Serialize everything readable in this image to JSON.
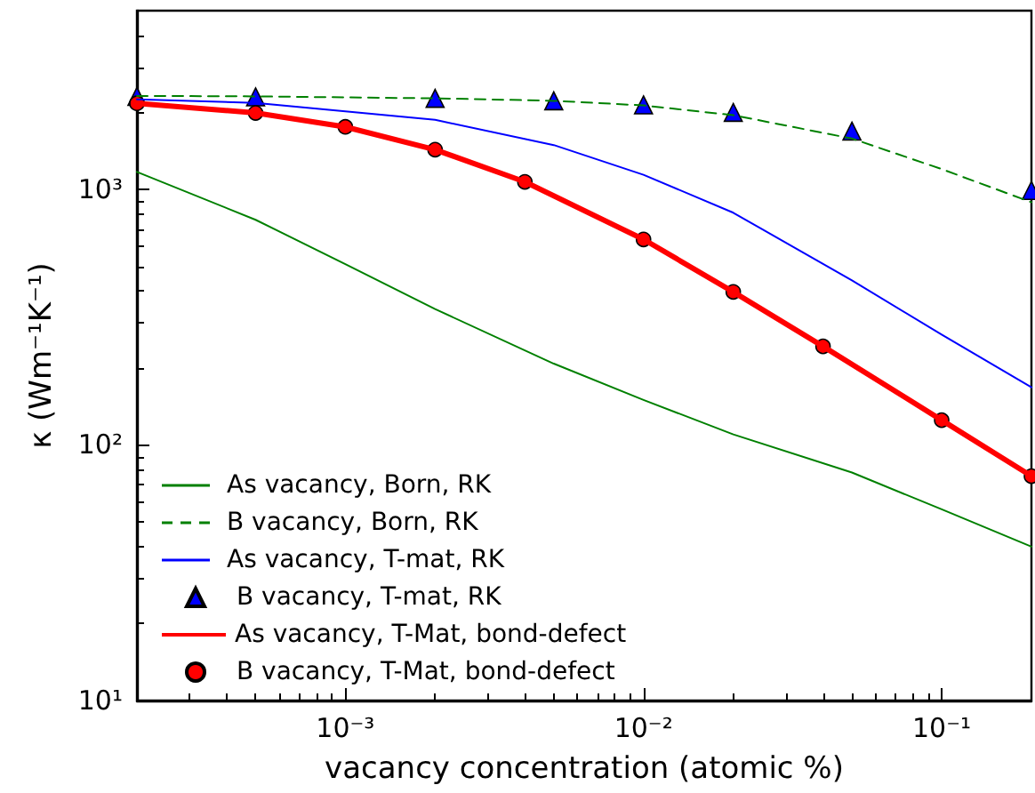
{
  "chart_data": {
    "type": "line",
    "xlabel": "vacancy concentration (atomic %)",
    "ylabel": "κ (Wm⁻¹K⁻¹)",
    "log": "xy",
    "xlim": [
      0.0002,
      0.2
    ],
    "xticks": [
      {
        "value": 0.001,
        "label": "10⁻³"
      },
      {
        "value": 0.01,
        "label": "10⁻²"
      },
      {
        "value": 0.1,
        "label": "10⁻¹"
      }
    ],
    "ylim": [
      10,
      5000
    ],
    "yticks": [
      {
        "value": 10,
        "label": "10¹"
      },
      {
        "value": 100,
        "label": "10²"
      },
      {
        "value": 1000,
        "label": "10³"
      }
    ],
    "grid": false,
    "legend": "bottom left",
    "series": [
      {
        "name": "As vacancy, Born, RK",
        "type": "line",
        "color": "#008000",
        "line_style": "solid",
        "marker": "none",
        "x": [
          0.0002,
          0.0005,
          0.001,
          0.002,
          0.005,
          0.01,
          0.02,
          0.05,
          0.1,
          0.2
        ],
        "values": [
          1170,
          760,
          510,
          340,
          208,
          150,
          110,
          78,
          56,
          40
        ]
      },
      {
        "name": "B vacancy, Born, RK",
        "type": "line",
        "color": "#008000",
        "line_style": "dashed",
        "marker": "none",
        "x": [
          0.0002,
          0.0005,
          0.001,
          0.002,
          0.005,
          0.01,
          0.02,
          0.05,
          0.1,
          0.2
        ],
        "values": [
          2320,
          2310,
          2290,
          2270,
          2220,
          2130,
          1950,
          1580,
          1200,
          890
        ]
      },
      {
        "name": "As vacancy, T-mat, RK",
        "type": "line",
        "color": "#0000ff",
        "line_style": "solid",
        "marker": "none",
        "x": [
          0.0002,
          0.0005,
          0.002,
          0.005,
          0.01,
          0.02,
          0.05,
          0.1,
          0.2
        ],
        "values": [
          2250,
          2180,
          1870,
          1490,
          1140,
          810,
          440,
          270,
          168
        ]
      },
      {
        "name": "B vacancy, T-mat, RK",
        "type": "scatter",
        "color": "#0000ff",
        "marker": "triangle",
        "x": [
          0.0002,
          0.0005,
          0.002,
          0.005,
          0.01,
          0.02,
          0.05,
          0.2
        ],
        "values": [
          2310,
          2300,
          2270,
          2220,
          2140,
          2000,
          1690,
          990
        ]
      },
      {
        "name": "As vacancy, T-Mat, bond-defect",
        "type": "line",
        "color": "#ff0000",
        "line_style": "solid",
        "marker": "none",
        "x": [
          0.0002,
          0.0005,
          0.001,
          0.002,
          0.004,
          0.01,
          0.02,
          0.04,
          0.1,
          0.2
        ],
        "values": [
          2170,
          1990,
          1755,
          1430,
          1070,
          637,
          397,
          243,
          125,
          75.5
        ]
      },
      {
        "name": "B vacancy, T-Mat, bond-defect",
        "type": "scatter",
        "color": "#ff0000",
        "marker": "circle",
        "x": [
          0.0002,
          0.0005,
          0.001,
          0.002,
          0.004,
          0.01,
          0.02,
          0.04,
          0.1,
          0.2
        ],
        "values": [
          2170,
          1990,
          1755,
          1430,
          1070,
          637,
          397,
          243,
          125,
          75.5
        ]
      }
    ]
  }
}
